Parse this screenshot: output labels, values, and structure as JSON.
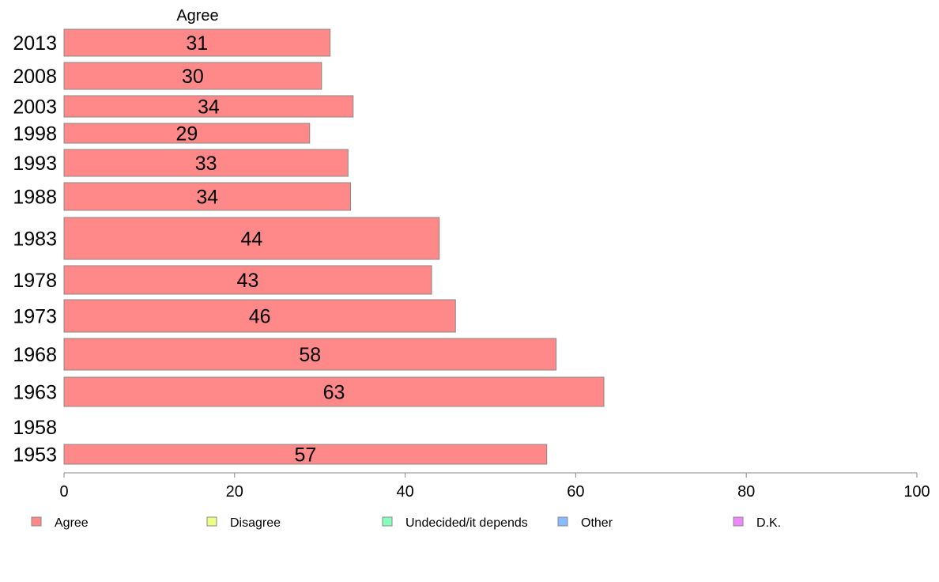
{
  "chart_data": {
    "type": "bar",
    "orientation": "horizontal",
    "column_title": "Agree",
    "categories": [
      "2013",
      "2008",
      "2003",
      "1998",
      "1993",
      "1988",
      "1983",
      "1978",
      "1973",
      "1968",
      "1963",
      "1958",
      "1953"
    ],
    "series": [
      {
        "name": "Agree",
        "values": [
          31,
          30,
          34,
          29,
          33,
          34,
          44,
          43,
          46,
          58,
          63,
          null,
          57
        ]
      }
    ],
    "bar_exact_values": [
      31.2,
      30.2,
      33.9,
      28.8,
      33.3,
      33.6,
      44.0,
      43.1,
      45.9,
      57.7,
      63.3,
      null,
      56.6
    ],
    "xlim": [
      0,
      100
    ],
    "xticks": [
      "0",
      "20",
      "40",
      "60",
      "80",
      "100"
    ],
    "xlabel": "",
    "ylabel": "",
    "grid": false,
    "legend": {
      "placement": "bottom",
      "items": [
        {
          "label": "Agree",
          "color": "#ff8888"
        },
        {
          "label": "Disagree",
          "color": "#eeff88"
        },
        {
          "label": "Undecided/it depends",
          "color": "#88ffbb"
        },
        {
          "label": "Other",
          "color": "#88bbff"
        },
        {
          "label": "D.K.",
          "color": "#ee88ff"
        }
      ]
    },
    "colors": {
      "agree": "#ff8888",
      "bar_border": "#888888",
      "axis": "#888888"
    }
  }
}
